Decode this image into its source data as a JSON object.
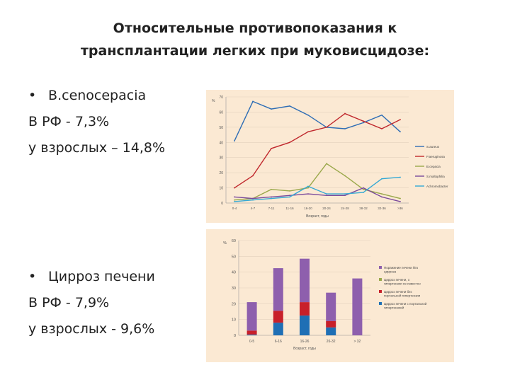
{
  "slide": {
    "title_line1": "Относительные противопоказания к",
    "title_line2": "трансплантации легких при муковисцидозе:"
  },
  "left_text": {
    "block1": {
      "bullet": "•",
      "heading": "B.cenocepacia",
      "line2": "В РФ - 7,3%",
      "line3": "у взрослых – 14,8%"
    },
    "block2": {
      "bullet": "•",
      "heading": "Цирроз печени",
      "line2": "В РФ - 7,9%",
      "line3": "у взрослых - 9,6%"
    }
  },
  "chart_data": [
    {
      "type": "line",
      "ylabel": "%",
      "xlabel": "Возраст, годы",
      "ylim": [
        0,
        70
      ],
      "y_ticks": [
        "0",
        "10",
        "20",
        "30",
        "40",
        "50",
        "60",
        "70"
      ],
      "categories": [
        "0-4",
        "4-7",
        "7-11",
        "11-16",
        "16-20",
        "20-24",
        "24-28",
        "28-32",
        "32-36",
        ">36"
      ],
      "legend_position": "right",
      "series": [
        {
          "name": "S.aureus",
          "color": "#2e6db5",
          "values": [
            41,
            67,
            62,
            64,
            58,
            50,
            49,
            53,
            58,
            47
          ]
        },
        {
          "name": "P.aeruginosa",
          "color": "#c0282d",
          "values": [
            10,
            18,
            36,
            40,
            47,
            50,
            59,
            54,
            49,
            55
          ]
        },
        {
          "name": "B.cepacia",
          "color": "#9aa84a",
          "values": [
            2,
            3,
            9,
            8,
            10,
            26,
            18,
            9,
            6,
            3
          ]
        },
        {
          "name": "S.maltophilia",
          "color": "#7a4a9c",
          "values": [
            4,
            3,
            4,
            5,
            6,
            5,
            5,
            10,
            4,
            1
          ]
        },
        {
          "name": "Achromobacter",
          "color": "#33a8d4",
          "values": [
            1,
            2,
            3,
            4,
            11,
            6,
            6,
            7,
            16,
            17
          ]
        }
      ]
    },
    {
      "type": "bar",
      "stacked": true,
      "ylabel": "%",
      "xlabel": "Возраст, годы",
      "ylim": [
        0,
        60
      ],
      "y_ticks": [
        "0",
        "10",
        "20",
        "30",
        "40",
        "50",
        "60"
      ],
      "categories": [
        "0-5",
        "6-16",
        "16-26",
        "26-32",
        "> 32"
      ],
      "legend_position": "right",
      "series": [
        {
          "name": "Цирроз печени с портальной гипертензией",
          "color": "#1f6fb5",
          "values": [
            0.5,
            8,
            12.5,
            5,
            0
          ]
        },
        {
          "name": "Цирроз печени без портальной гипертензии",
          "color": "#c8202a",
          "values": [
            2.5,
            7.5,
            8.5,
            4,
            0
          ]
        },
        {
          "name": "Цирроз печени, о гипертензии не известно",
          "color": "#9aa84a",
          "values": [
            0,
            0,
            0,
            0,
            0
          ]
        },
        {
          "name": "Поражение печени без цирроза",
          "color": "#8e5fad",
          "values": [
            18,
            27,
            27.5,
            18,
            36
          ]
        }
      ]
    }
  ]
}
